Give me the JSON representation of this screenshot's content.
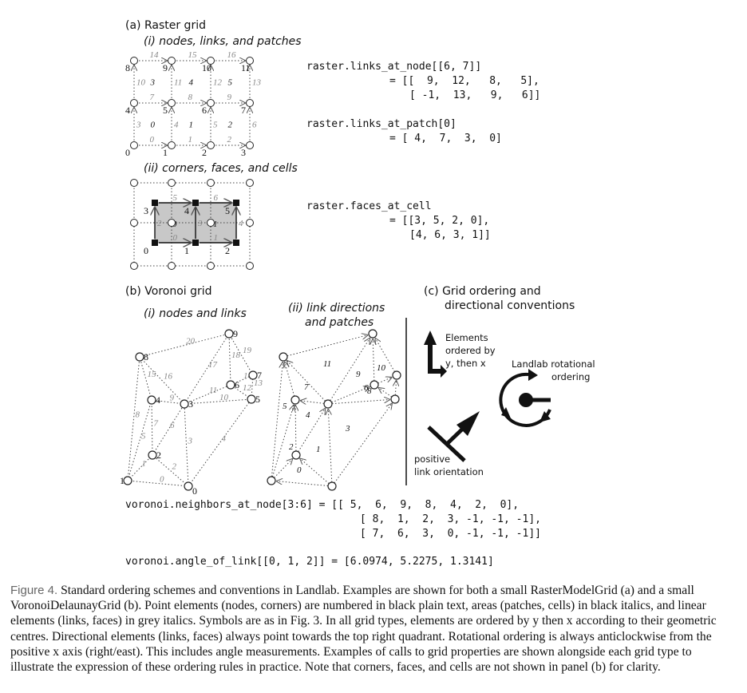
{
  "headings": {
    "a": "(a) Raster grid",
    "a_i": "(i) nodes, links, and patches",
    "a_ii": "(ii) corners, faces, and cells",
    "b": "(b) Voronoi grid",
    "b_i": "(i) nodes and links",
    "b_ii_line1": "(ii) link directions",
    "b_ii_line2": "and patches",
    "c_line1": "(c) Grid ordering and",
    "c_line2": "directional conventions"
  },
  "code": {
    "raster_links_1": "raster.links_at_node[[6, 7]]",
    "raster_links_2": "= [[  9,  12,   8,   5],",
    "raster_links_3": "[ -1,  13,   9,   6]]",
    "raster_patch_1": "raster.links_at_patch[0]",
    "raster_patch_2": "= [ 4,  7,  3,  0]",
    "raster_faces_1": "raster.faces_at_cell",
    "raster_faces_2": "= [[3, 5, 2, 0],",
    "raster_faces_3": "[4, 6, 3, 1]]",
    "voronoi_nb_1": "voronoi.neighbors_at_node[3:6] = [[ 5,  6,  9,  8,  4,  2,  0],",
    "voronoi_nb_2": "[ 8,  1,  2,  3, -1, -1, -1],",
    "voronoi_nb_3": "[ 7,  6,  3,  0, -1, -1, -1]]",
    "voronoi_angle": "voronoi.angle_of_link[[0, 1, 2]] = [6.0974, 5.2275, 1.3141]"
  },
  "conventions": {
    "elements_1": "Elements",
    "elements_2": "ordered by",
    "elements_3": "y, then x",
    "rot_1": "Landlab rotational",
    "rot_2": "ordering",
    "pos_1": "positive",
    "pos_2": "link orientation"
  },
  "caption": {
    "label": "Figure 4.",
    "text": "Standard ordering schemes and conventions in Landlab. Examples are shown for both a small RasterModelGrid (a) and a small VoronoiDelaunayGrid (b). Point elements (nodes, corners) are numbered in black plain text, areas (patches, cells) in black italics, and linear elements (links, faces) in grey italics. Symbols are as in Fig. 3. In all grid types, elements are ordered by y then x according to their geometric centres. Directional elements (links, faces) always point towards the top right quadrant. Rotational ordering is always anticlockwise from the positive x axis (right/east). This includes angle measurements. Examples of calls to grid properties are shown alongside each grid type to illustrate the expression of these ordering rules in practice. Note that corners, faces, and cells are not shown in panel (b) for clarity."
  },
  "raster_nodes": [
    "0",
    "1",
    "2",
    "3",
    "4",
    "5",
    "6",
    "7",
    "8",
    "9",
    "10",
    "11"
  ],
  "raster_links": [
    "0",
    "1",
    "2",
    "3",
    "4",
    "5",
    "6",
    "7",
    "8",
    "9",
    "10",
    "11",
    "12",
    "13",
    "14",
    "15",
    "16"
  ],
  "raster_patches": [
    "0",
    "1",
    "2",
    "3",
    "4",
    "5"
  ],
  "raster_corners": [
    "0",
    "1",
    "2",
    "3",
    "4",
    "5"
  ],
  "raster_faces": [
    "0",
    "1",
    "2",
    "3",
    "4",
    "5",
    "6"
  ],
  "raster_cells": [
    "0",
    "1"
  ],
  "voronoi_nodes": [
    "0",
    "1",
    "2",
    "3",
    "4",
    "5",
    "6",
    "7",
    "8",
    "9"
  ],
  "voronoi_links": [
    "0",
    "1",
    "2",
    "3",
    "4",
    "5",
    "6",
    "7",
    "8",
    "9",
    "10",
    "11",
    "12",
    "13",
    "14",
    "15",
    "16",
    "17",
    "18",
    "19",
    "20"
  ],
  "voronoi_patches": [
    "0",
    "1",
    "2",
    "3",
    "4",
    "5",
    "6",
    "7",
    "8",
    "9",
    "10",
    "11"
  ],
  "colors": {
    "cell_fill": "#c8c8c8",
    "grey_label": "#888888",
    "caption_label": "#666666"
  }
}
